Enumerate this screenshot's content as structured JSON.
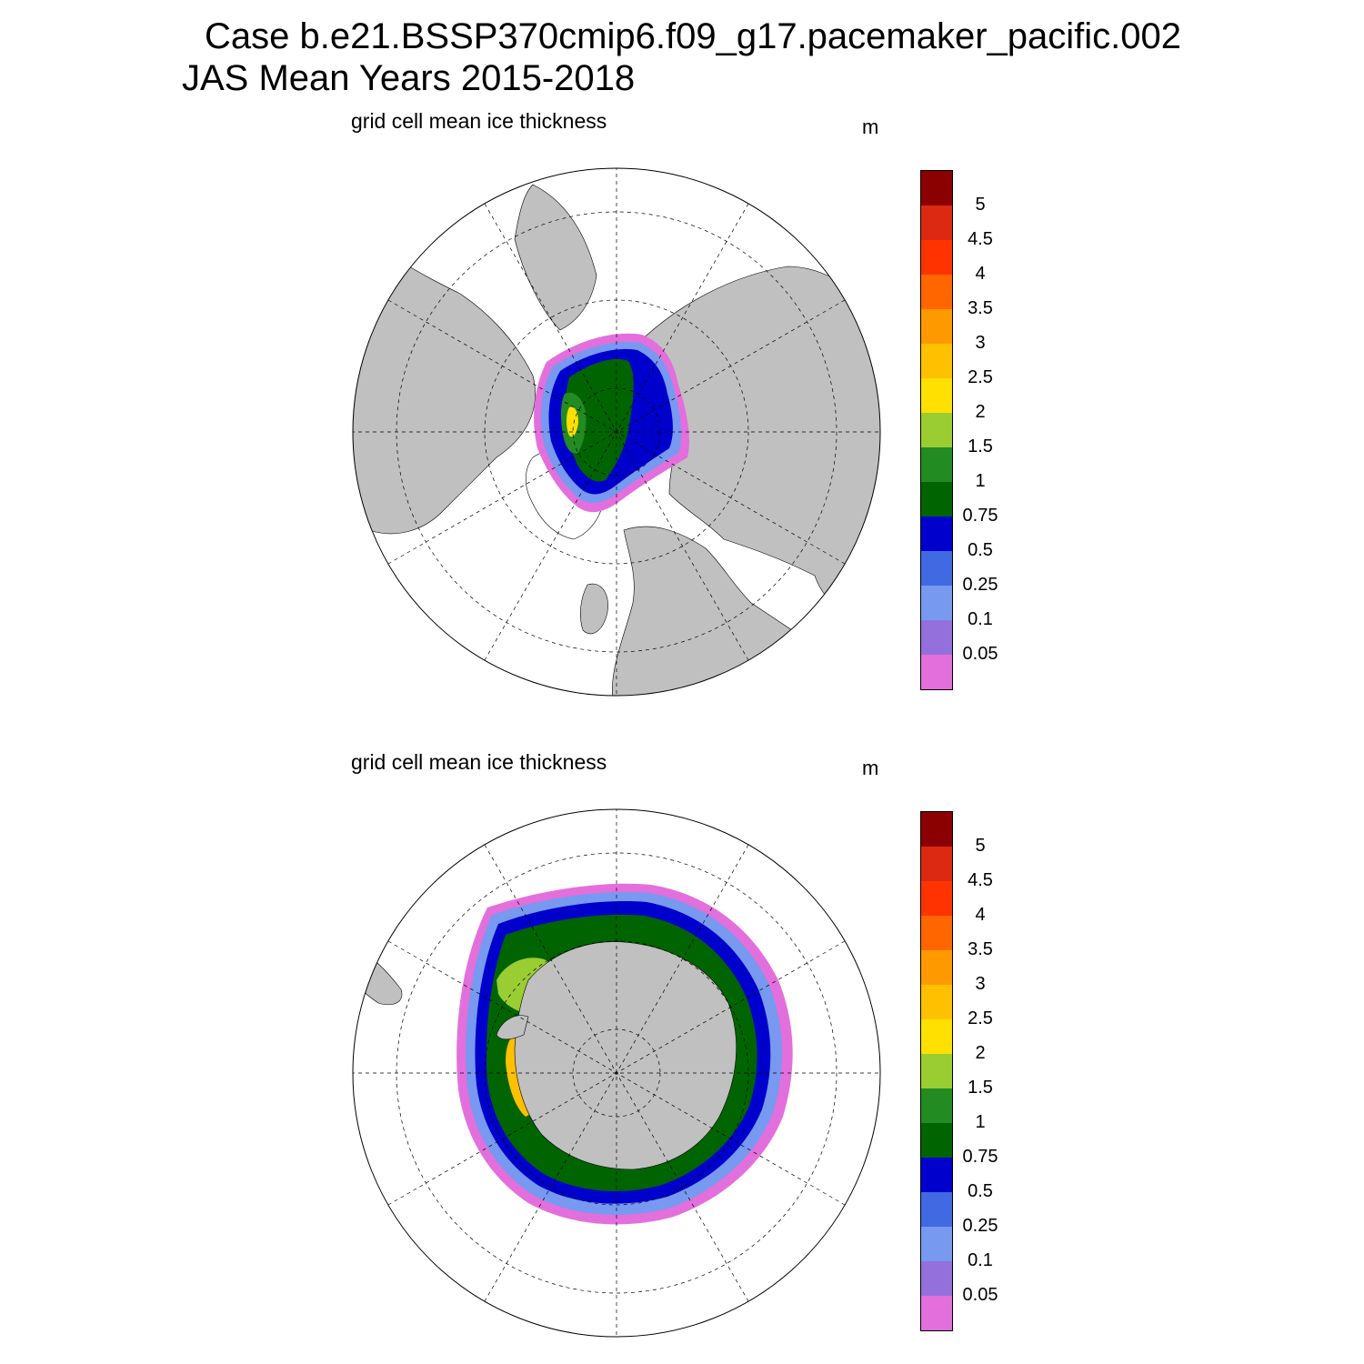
{
  "header": {
    "title_line1": "Case b.e21.BSSP370cmip6.f09_g17.pacemaker_pacific.002",
    "title_line2": "JAS Mean   Years 2015-2018"
  },
  "panels": [
    {
      "id": "nh",
      "title": "grid cell mean ice thickness",
      "units": "m"
    },
    {
      "id": "sh",
      "title": "grid cell mean ice thickness",
      "units": "m"
    }
  ],
  "colorbar": {
    "labels": [
      "5",
      "4.5",
      "4",
      "3.5",
      "3",
      "2.5",
      "2",
      "1.5",
      "1",
      "0.75",
      "0.5",
      "0.25",
      "0.1",
      "0.05"
    ],
    "colors": [
      "#8b0000",
      "#dc2a12",
      "#ff3300",
      "#ff6600",
      "#ff9900",
      "#ffc000",
      "#ffe000",
      "#9acd32",
      "#228b22",
      "#006400",
      "#0000cd",
      "#4169e1",
      "#7799f0",
      "#9370db",
      "#e36fdc"
    ]
  },
  "colors": {
    "land": "#c0c0c0",
    "ocean": "#ffffff"
  }
}
